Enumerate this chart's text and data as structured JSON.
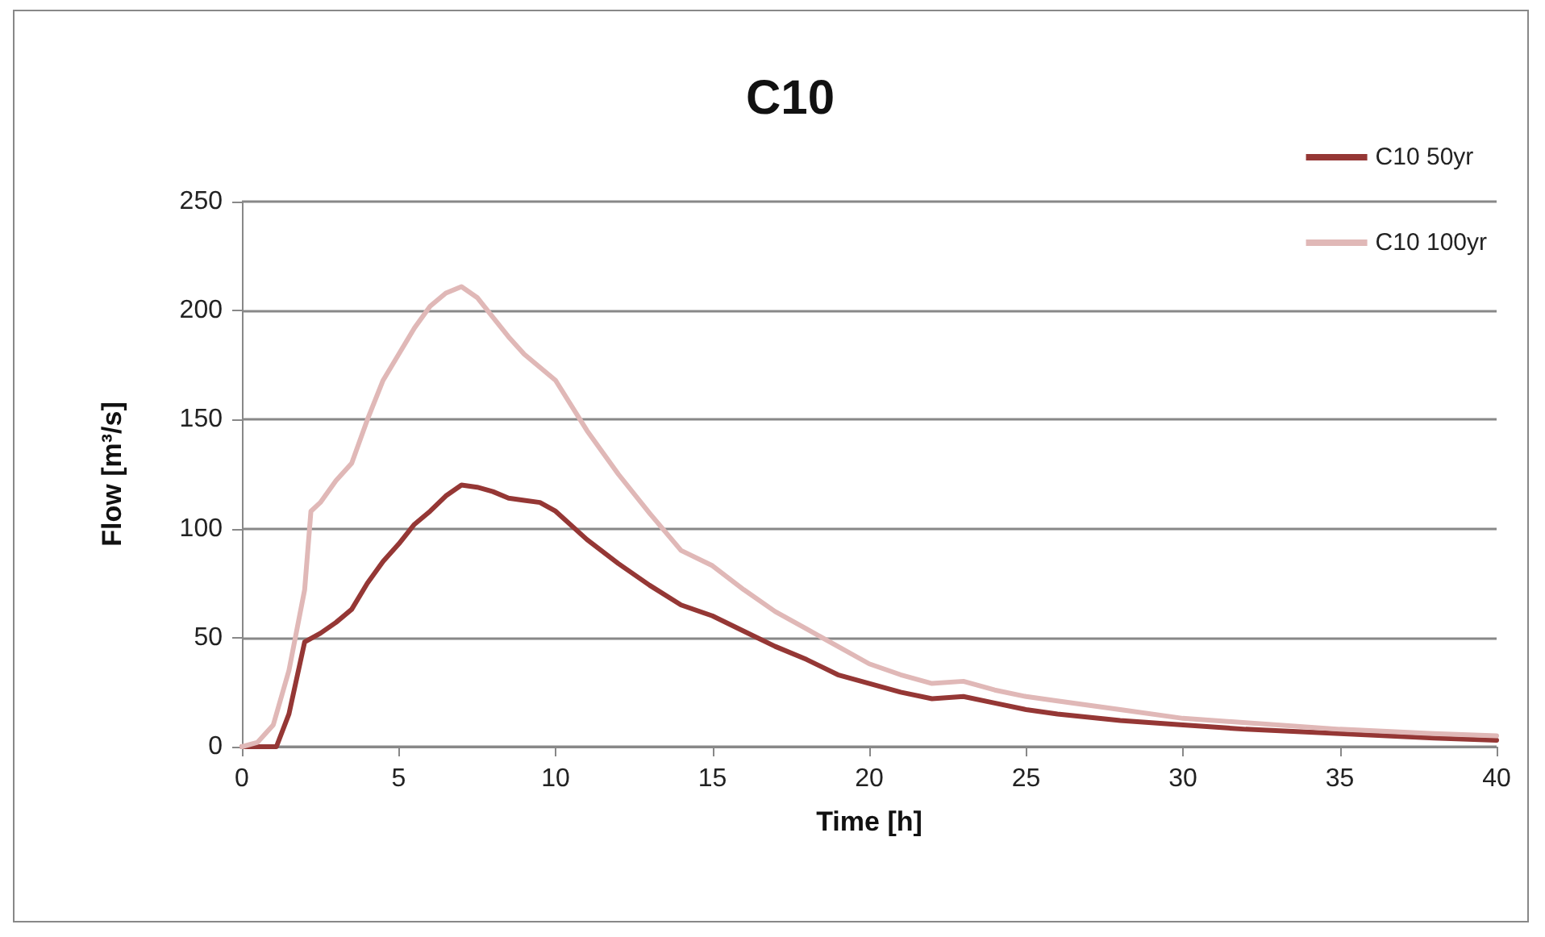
{
  "chart_data": {
    "type": "line",
    "title": "C10",
    "xlabel": "Time [h]",
    "ylabel": "Flow [m³/s]",
    "xlim": [
      0,
      40
    ],
    "xticks": [
      0,
      5,
      10,
      15,
      20,
      25,
      30,
      35,
      40
    ],
    "ylim": [
      0,
      250
    ],
    "yticks": [
      0,
      50,
      100,
      150,
      200,
      250
    ],
    "grid": "y",
    "legend": "top right",
    "marker": "none",
    "line_style": "solid",
    "series": [
      {
        "name": "C10 50yr",
        "color": "#953735",
        "x": [
          0,
          0.5,
          1.1,
          1.5,
          2,
          2.5,
          3,
          3.5,
          4,
          4.5,
          5,
          5.5,
          6,
          6.5,
          7,
          7.5,
          8,
          8.5,
          9,
          9.5,
          10,
          11,
          12,
          13,
          14,
          15,
          16,
          17,
          18,
          19,
          20,
          21,
          22,
          23,
          24,
          25,
          26,
          28,
          30,
          32,
          35,
          38,
          40
        ],
        "values": [
          0,
          0,
          0,
          15,
          48,
          52,
          57,
          63,
          75,
          85,
          93,
          102,
          108,
          115,
          120,
          119,
          117,
          114,
          113,
          112,
          108,
          95,
          84,
          74,
          65,
          60,
          53,
          46,
          40,
          33,
          29,
          25,
          22,
          23,
          20,
          17,
          15,
          12,
          10,
          8,
          6,
          4,
          3
        ]
      },
      {
        "name": "C10 100yr",
        "color": "#e0b8b7",
        "x": [
          0,
          0.5,
          1,
          1.5,
          2,
          2.2,
          2.5,
          3,
          3.5,
          4,
          4.5,
          5,
          5.5,
          6,
          6.5,
          7,
          7.5,
          8,
          8.5,
          9,
          9.5,
          10,
          11,
          12,
          13,
          14,
          15,
          16,
          17,
          18,
          19,
          20,
          21,
          22,
          23,
          24,
          25,
          26,
          28,
          30,
          32,
          35,
          38,
          40
        ],
        "values": [
          0,
          2,
          10,
          35,
          72,
          108,
          112,
          122,
          130,
          150,
          168,
          180,
          192,
          202,
          208,
          211,
          206,
          197,
          188,
          180,
          174,
          168,
          145,
          125,
          107,
          90,
          83,
          72,
          62,
          54,
          46,
          38,
          33,
          29,
          30,
          26,
          23,
          21,
          17,
          13,
          11,
          8,
          6,
          5
        ]
      }
    ]
  }
}
